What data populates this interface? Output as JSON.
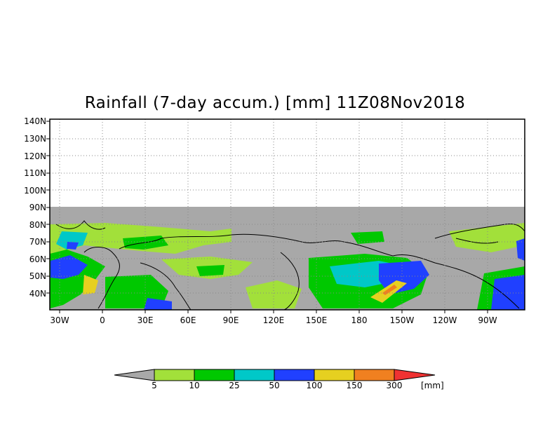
{
  "map": {
    "title": "Rainfall (7-day accum.) [mm] 11Z08Nov2018",
    "lat_labels": [
      "140N",
      "130N",
      "120N",
      "110N",
      "100N",
      "90N",
      "80N",
      "70N",
      "60N",
      "50N",
      "40N"
    ],
    "lon_labels": [
      "30W",
      "0",
      "30E",
      "60E",
      "90E",
      "120E",
      "150E",
      "180",
      "150W",
      "120W",
      "90W"
    ],
    "extent": {
      "lat_range": [
        32,
        142
      ],
      "lon_start": "40W",
      "lon_end": "65W"
    },
    "no_data_color": "#a8a8a8",
    "region": "Northern Hemisphere mid-high latitudes, Atlantic–Eurasia–Pacific–North America"
  },
  "colorbar": {
    "unit": "[mm]",
    "thresholds": [
      "5",
      "10",
      "25",
      "50",
      "100",
      "150",
      "300"
    ],
    "colors": [
      "#a8a8a8",
      "#a2e03a",
      "#00c800",
      "#00c8c8",
      "#2040ff",
      "#e6d020",
      "#f08020",
      "#f03232"
    ]
  }
}
